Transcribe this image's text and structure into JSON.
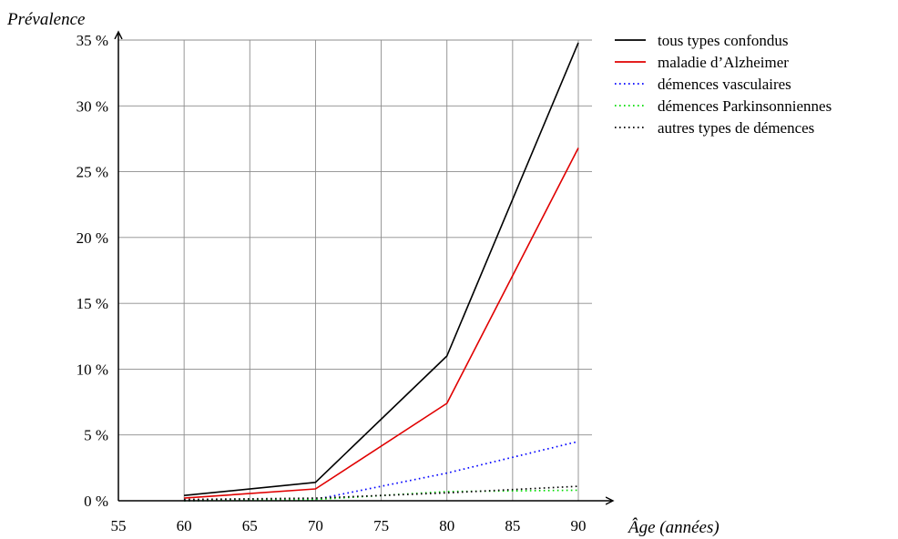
{
  "chart_data": {
    "type": "line",
    "xlabel": "Âge (années)",
    "ylabel": "Prévalence",
    "xlim": [
      55,
      90
    ],
    "ylim": [
      0,
      35
    ],
    "x_ticks": [
      55,
      60,
      65,
      70,
      75,
      80,
      85,
      90
    ],
    "y_ticks": [
      0,
      5,
      10,
      15,
      20,
      25,
      30,
      35
    ],
    "y_tick_labels": [
      "0 %",
      "5 %",
      "10 %",
      "15 %",
      "20 %",
      "25 %",
      "30 %",
      "35 %"
    ],
    "grid": true,
    "legend_position": "top-right, outside plot",
    "series": [
      {
        "name": "tous types confondus",
        "color": "#000000",
        "style": "solid",
        "x": [
          60,
          70,
          80,
          90
        ],
        "values": [
          0.4,
          1.4,
          11.0,
          34.8
        ]
      },
      {
        "name": "maladie d’Alzheimer",
        "color": "#e00000",
        "style": "solid",
        "x": [
          60,
          70,
          80,
          90
        ],
        "values": [
          0.2,
          0.9,
          7.4,
          26.8
        ]
      },
      {
        "name": "démences vasculaires",
        "color": "#0000ff",
        "style": "dotted",
        "x": [
          60,
          70,
          80,
          90
        ],
        "values": [
          0.0,
          0.1,
          2.1,
          4.5
        ]
      },
      {
        "name": "démences Parkinsonniennes",
        "color": "#00dd00",
        "style": "dotted",
        "x": [
          60,
          70,
          80,
          90
        ],
        "values": [
          0.0,
          0.1,
          0.7,
          0.8
        ]
      },
      {
        "name": "autres types de démences",
        "color": "#000000",
        "style": "dotted",
        "x": [
          60,
          70,
          80,
          90
        ],
        "values": [
          0.1,
          0.2,
          0.6,
          1.1
        ]
      }
    ]
  }
}
